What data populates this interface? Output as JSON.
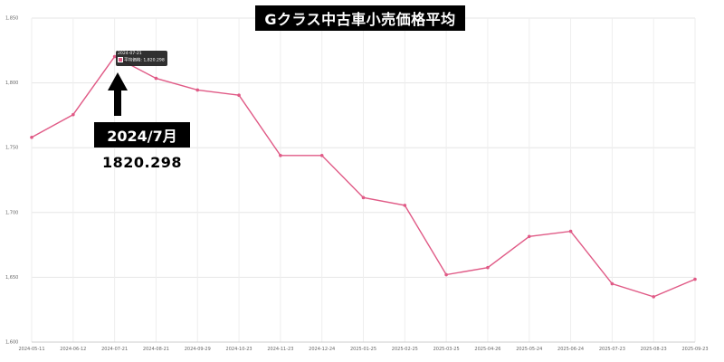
{
  "chart_data": {
    "type": "line",
    "title": "Gクラス中古車小売価格平均",
    "xlabel": "",
    "ylabel": "",
    "ylim": [
      1600,
      1850
    ],
    "y_ticks": [
      "1,600",
      "1,650",
      "1,700",
      "1,750",
      "1,800",
      "1,850"
    ],
    "y_tick_values": [
      1600,
      1650,
      1700,
      1750,
      1800,
      1850
    ],
    "grid": true,
    "line_color": "#e05a86",
    "categories": [
      "2024-05-11",
      "2024-06-12",
      "2024-07-21",
      "2024-08-21",
      "2024-09-29",
      "2024-10-23",
      "2024-11-23",
      "2024-12-24",
      "2025-01-25",
      "2025-02-25",
      "2025-03-25",
      "2025-04-26",
      "2025-05-24",
      "2025-06-24",
      "2025-07-23",
      "2025-08-23",
      "2025-09-23"
    ],
    "series": [
      {
        "values": [
          1758,
          1775.5,
          1820.298,
          1803.5,
          1794.5,
          1790.5,
          1744,
          1744,
          1711.5,
          1705.5,
          1652,
          1657.5,
          1681.5,
          1685.5,
          1645,
          1635,
          1648.5
        ]
      }
    ],
    "tooltip": {
      "date": "2024-07-21",
      "label": "平均価格: 1,820.298"
    },
    "annotation": {
      "label": "2024/7月",
      "value": "1820.298"
    }
  }
}
